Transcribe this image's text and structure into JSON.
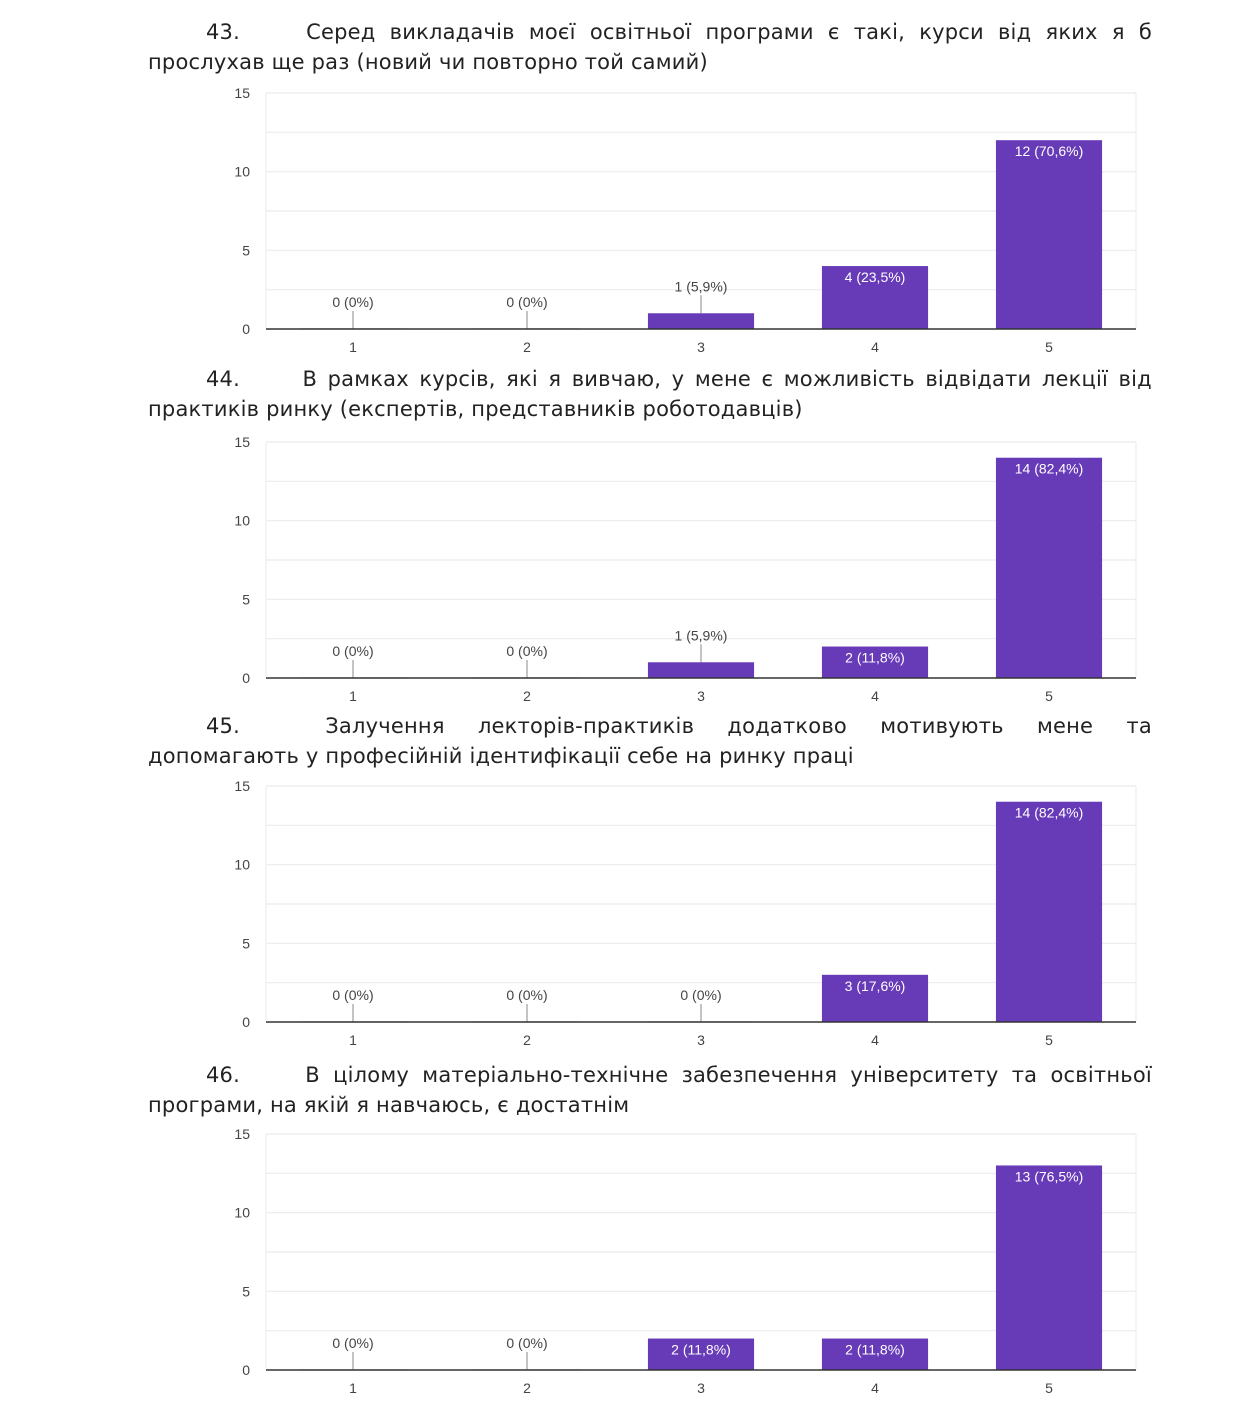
{
  "colors": {
    "bar": "#673ab7",
    "axis": "#333333",
    "grid": "#ebebeb",
    "label_dark": "#444444",
    "label_light": "#ffffff"
  },
  "questions": [
    {
      "number": "43.",
      "line1_words": [
        "Серед",
        "викладачів",
        "моєї",
        "освітньої",
        "програми",
        "є",
        "такі,",
        "курси",
        "від",
        "яких",
        "я",
        "б"
      ],
      "line2": "прослухав ще раз (новий чи повторно той самий)"
    },
    {
      "number": "44.",
      "line1_words": [
        "В",
        "рамках",
        "курсів,",
        "які",
        "я",
        "вивчаю,",
        "у",
        "мене",
        "є",
        "можливість",
        "відвідати",
        "лекції",
        "від"
      ],
      "line2": "практиків ринку (експертів, представників роботодавців)"
    },
    {
      "number": "45.",
      "line1_words": [
        "Залучення",
        "лекторів-практиків",
        "додатково",
        "мотивують",
        "мене",
        "та"
      ],
      "line2": "допомагають у професійній ідентифікації себе на ринку праці"
    },
    {
      "number": "46.",
      "line1_words": [
        "В",
        "цілому",
        "матеріально-технічне",
        "забезпечення",
        "університету",
        "та",
        "освітньої"
      ],
      "line2": "програми, на якій я навчаюсь, є достатнім"
    }
  ],
  "chart_data": [
    {
      "type": "bar",
      "title": "",
      "xlabel": "",
      "ylabel": "",
      "ylim": [
        0,
        15
      ],
      "yticks": [
        "0",
        "5",
        "10",
        "15"
      ],
      "grid": true,
      "categories": [
        "1",
        "2",
        "3",
        "4",
        "5"
      ],
      "values": [
        0,
        0,
        1,
        4,
        12
      ],
      "labels": [
        "0 (0%)",
        "0 (0%)",
        "1 (5,9%)",
        "4 (23,5%)",
        "12 (70,6%)"
      ]
    },
    {
      "type": "bar",
      "title": "",
      "xlabel": "",
      "ylabel": "",
      "ylim": [
        0,
        15
      ],
      "yticks": [
        "0",
        "5",
        "10",
        "15"
      ],
      "grid": true,
      "categories": [
        "1",
        "2",
        "3",
        "4",
        "5"
      ],
      "values": [
        0,
        0,
        1,
        2,
        14
      ],
      "labels": [
        "0 (0%)",
        "0 (0%)",
        "1 (5,9%)",
        "2 (11,8%)",
        "14 (82,4%)"
      ]
    },
    {
      "type": "bar",
      "title": "",
      "xlabel": "",
      "ylabel": "",
      "ylim": [
        0,
        15
      ],
      "yticks": [
        "0",
        "5",
        "10",
        "15"
      ],
      "grid": true,
      "categories": [
        "1",
        "2",
        "3",
        "4",
        "5"
      ],
      "values": [
        0,
        0,
        0,
        3,
        14
      ],
      "labels": [
        "0 (0%)",
        "0 (0%)",
        "0 (0%)",
        "3 (17,6%)",
        "14 (82,4%)"
      ]
    },
    {
      "type": "bar",
      "title": "",
      "xlabel": "",
      "ylabel": "",
      "ylim": [
        0,
        15
      ],
      "yticks": [
        "0",
        "5",
        "10",
        "15"
      ],
      "grid": true,
      "categories": [
        "1",
        "2",
        "3",
        "4",
        "5"
      ],
      "values": [
        0,
        0,
        2,
        2,
        13
      ],
      "labels": [
        "0 (0%)",
        "0 (0%)",
        "2 (11,8%)",
        "2 (11,8%)",
        "13 (76,5%)"
      ]
    }
  ]
}
